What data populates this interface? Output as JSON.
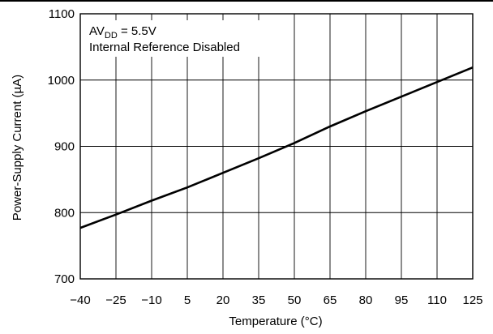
{
  "chart_data": {
    "type": "line",
    "xlabel": "Temperature (°C)",
    "ylabel": "Power-Supply Current (µA)",
    "xlim": [
      -40,
      125
    ],
    "ylim": [
      700,
      1100
    ],
    "x_ticks": [
      -40,
      -25,
      -10,
      5,
      20,
      35,
      50,
      65,
      80,
      95,
      110,
      125
    ],
    "y_ticks": [
      700,
      800,
      900,
      1000,
      1100
    ],
    "grid": true,
    "annotation": {
      "line1_main": "AV",
      "line1_sub": "DD",
      "line1_rest": " = 5.5V",
      "line2": "Internal Reference Disabled"
    },
    "series": [
      {
        "x": [
          -40,
          -25,
          -10,
          5,
          20,
          35,
          50,
          65,
          80,
          95,
          110,
          125
        ],
        "y": [
          777,
          797,
          818,
          838,
          860,
          882,
          905,
          930,
          953,
          975,
          997,
          1019
        ]
      }
    ],
    "colors": {
      "line": "#000000",
      "grid": "#000000"
    }
  }
}
